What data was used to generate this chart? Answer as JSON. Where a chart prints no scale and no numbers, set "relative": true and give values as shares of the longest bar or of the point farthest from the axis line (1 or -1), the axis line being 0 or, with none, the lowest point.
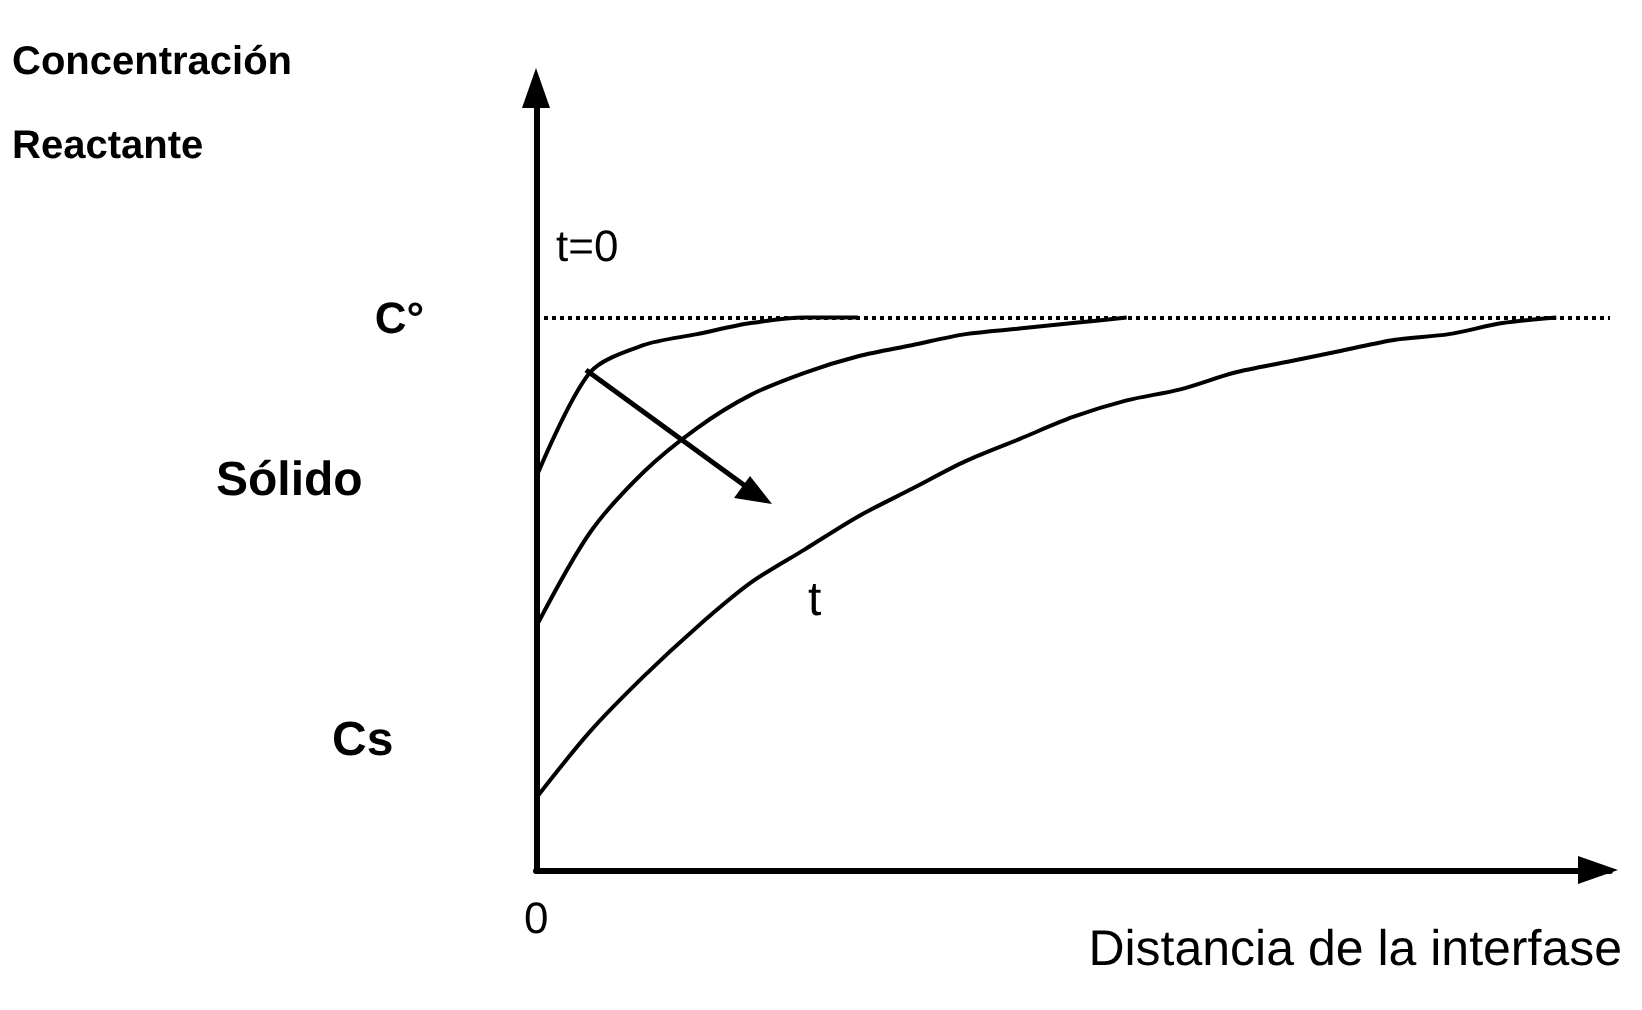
{
  "chart_data": {
    "type": "line",
    "relative": true,
    "xlabel": "Distancia de la interfase",
    "categories": [
      null,
      null,
      null,
      null,
      null,
      null,
      null,
      null,
      null,
      null,
      null,
      null,
      null,
      null,
      null,
      null,
      null,
      null,
      null,
      null,
      null
    ],
    "series": [
      {
        "color": "#000000",
        "values": [
          0.71,
          0.9,
          0.95,
          0.97,
          0.99,
          1.0,
          1.0,
          null,
          null,
          null,
          null,
          null,
          null,
          null,
          null,
          null,
          null,
          null,
          null,
          null,
          null
        ]
      },
      {
        "color": "#000000",
        "values": [
          0.44,
          0.61,
          0.72,
          0.8,
          0.86,
          0.9,
          0.93,
          0.95,
          0.97,
          0.98,
          0.99,
          1.0,
          null,
          null,
          null,
          null,
          null,
          null,
          null,
          null,
          null
        ]
      },
      {
        "color": "#000000",
        "values": [
          0.13,
          0.25,
          0.35,
          0.44,
          0.52,
          0.58,
          0.64,
          0.69,
          0.74,
          0.78,
          0.82,
          0.85,
          0.87,
          0.9,
          0.92,
          0.94,
          0.96,
          0.97,
          0.99,
          1.0,
          null
        ]
      }
    ],
    "ref_lines": [
      {
        "axis": "y",
        "value": 1,
        "label": "C°",
        "color": "#000000",
        "line_style": "dotted"
      }
    ],
    "annotations": [
      "t=0",
      "t",
      "Sólido",
      "Cs",
      "0",
      "Concentración\nReactante"
    ],
    "marker": "none",
    "line_style": "solid",
    "grid": false
  }
}
